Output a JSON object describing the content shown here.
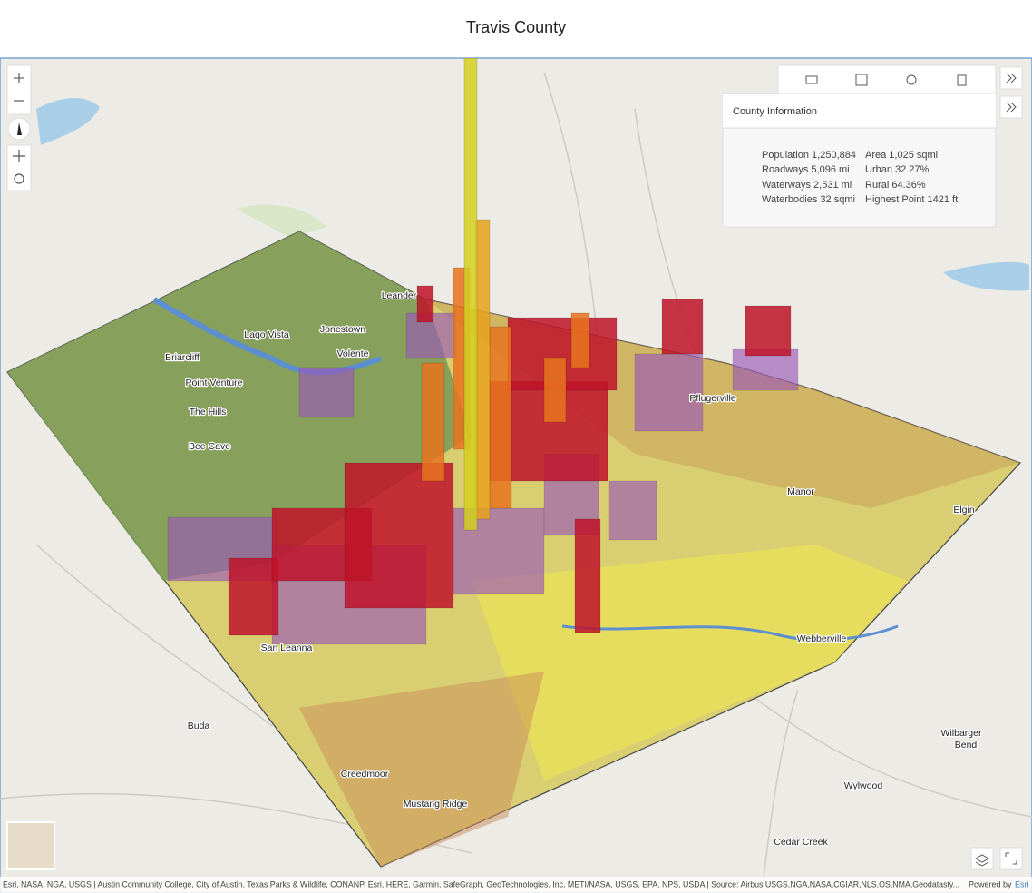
{
  "header": {
    "title": "Travis County"
  },
  "panel": {
    "title": "County Information",
    "rows": [
      [
        "Population 1,250,884",
        "Area 1,025 sqmi"
      ],
      [
        "Roadways 5,096 mi",
        "Urban 32.27%"
      ],
      [
        "Waterways 2,531 mi",
        "Rural 64.36%"
      ],
      [
        "Waterbodies 32 sqmi",
        "Highest Point 1421 ft"
      ]
    ]
  },
  "places": [
    "Leander",
    "Lago Vista",
    "Jonestown",
    "Briarcliff",
    "Volente",
    "Point Venture",
    "The Hills",
    "Bee Cave",
    "Pflugerville",
    "Manor",
    "Elgin",
    "Webberville",
    "San Leanna",
    "Creedmoor",
    "Mustang Ridge",
    "Buda",
    "Wylwood",
    "Cedar Creek",
    "Wilbarger",
    "Bend"
  ],
  "attribution": "Esri, NASA, NGA, USGS | Austin Community College, City of Austin, Texas Parks & Wildlife, CONANP, Esri, HERE, Garmin, SafeGraph, GeoTechnologies, Inc, METI/NASA, USGS, EPA, NPS, USDA | Source: Airbus,USGS,NGA,NASA,CGIAR,NLS,OS,NMA,Geodatasty...",
  "powered_by": "Powered by",
  "esri": "Esri"
}
